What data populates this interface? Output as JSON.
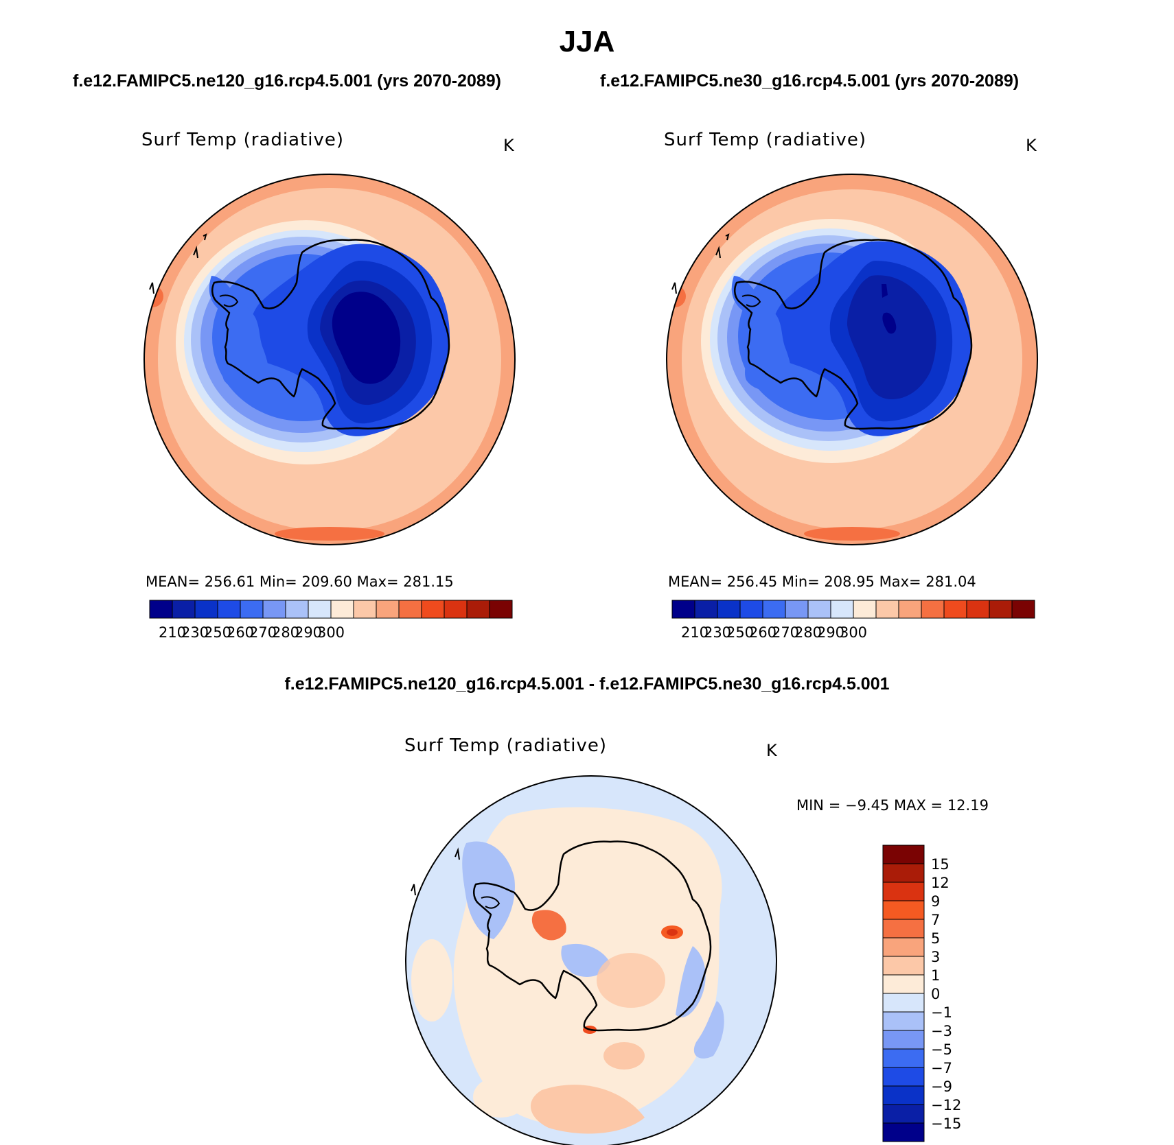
{
  "figure": {
    "season": "JJA",
    "left_case": "f.e12.FAMIPC5.ne120_g16.rcp4.5.001 (yrs 2070-2089)",
    "right_case": "f.e12.FAMIPC5.ne30_g16.rcp4.5.001 (yrs 2070-2089)",
    "diff_title": "f.e12.FAMIPC5.ne120_g16.rcp4.5.001 - f.e12.FAMIPC5.ne30_g16.rcp4.5.001"
  },
  "panels": [
    {
      "variable": "Surf Temp (radiative)",
      "unit": "K",
      "stats": "MEAN= 256.61   Min= 209.60   Max= 281.15"
    },
    {
      "variable": "Surf Temp (radiative)",
      "unit": "K",
      "stats": "MEAN= 256.45   Min= 208.95   Max= 281.04"
    }
  ],
  "diff_panel": {
    "variable": "Surf Temp (radiative)",
    "unit": "K",
    "stats": "MIN =   −9.45 MAX =   12.19"
  },
  "chart_data": [
    {
      "type": "heatmap",
      "projection": "south polar stereographic",
      "variable": "Surf Temp (radiative)",
      "unit": "K",
      "mean": 256.61,
      "min": 209.6,
      "max": 281.15,
      "colorbar_ticks": [
        "210",
        "230",
        "250",
        "260",
        "270",
        "280",
        "290",
        "300"
      ],
      "colors": [
        "#00008a",
        "#0a1fa6",
        "#0a32c8",
        "#1e4be6",
        "#3c6cf2",
        "#7897f5",
        "#aac1f8",
        "#d7e6fb",
        "#fdebd8",
        "#fcc8a8",
        "#f9a47c",
        "#f57042",
        "#ef4b1e",
        "#da3311",
        "#aa1c08",
        "#7a0303"
      ],
      "legend_position": "bottom"
    },
    {
      "type": "heatmap",
      "projection": "south polar stereographic",
      "variable": "Surf Temp (radiative)",
      "unit": "K",
      "mean": 256.45,
      "min": 208.95,
      "max": 281.04,
      "colorbar_ticks": [
        "210",
        "230",
        "250",
        "260",
        "270",
        "280",
        "290",
        "300"
      ],
      "colors": [
        "#00008a",
        "#0a1fa6",
        "#0a32c8",
        "#1e4be6",
        "#3c6cf2",
        "#7897f5",
        "#aac1f8",
        "#d7e6fb",
        "#fdebd8",
        "#fcc8a8",
        "#f9a47c",
        "#f57042",
        "#ef4b1e",
        "#da3311",
        "#aa1c08",
        "#7a0303"
      ],
      "legend_position": "bottom"
    },
    {
      "type": "heatmap",
      "projection": "south polar stereographic",
      "variable": "Surf Temp (radiative)",
      "unit": "K",
      "min": -9.45,
      "max": 12.19,
      "colorbar_ticks": [
        "15",
        "12",
        "9",
        "7",
        "5",
        "3",
        "1",
        "0",
        "−1",
        "−3",
        "−5",
        "−7",
        "−9",
        "−12",
        "−15"
      ],
      "colors": [
        "#7a0303",
        "#aa1c08",
        "#da3311",
        "#f55a22",
        "#f57042",
        "#f9a47c",
        "#fcc8a8",
        "#fdebd8",
        "#d7e6fb",
        "#aac1f8",
        "#7897f5",
        "#3c6cf2",
        "#1e4be6",
        "#0a32c8",
        "#0a1fa6",
        "#00008a"
      ],
      "legend_position": "right"
    }
  ]
}
